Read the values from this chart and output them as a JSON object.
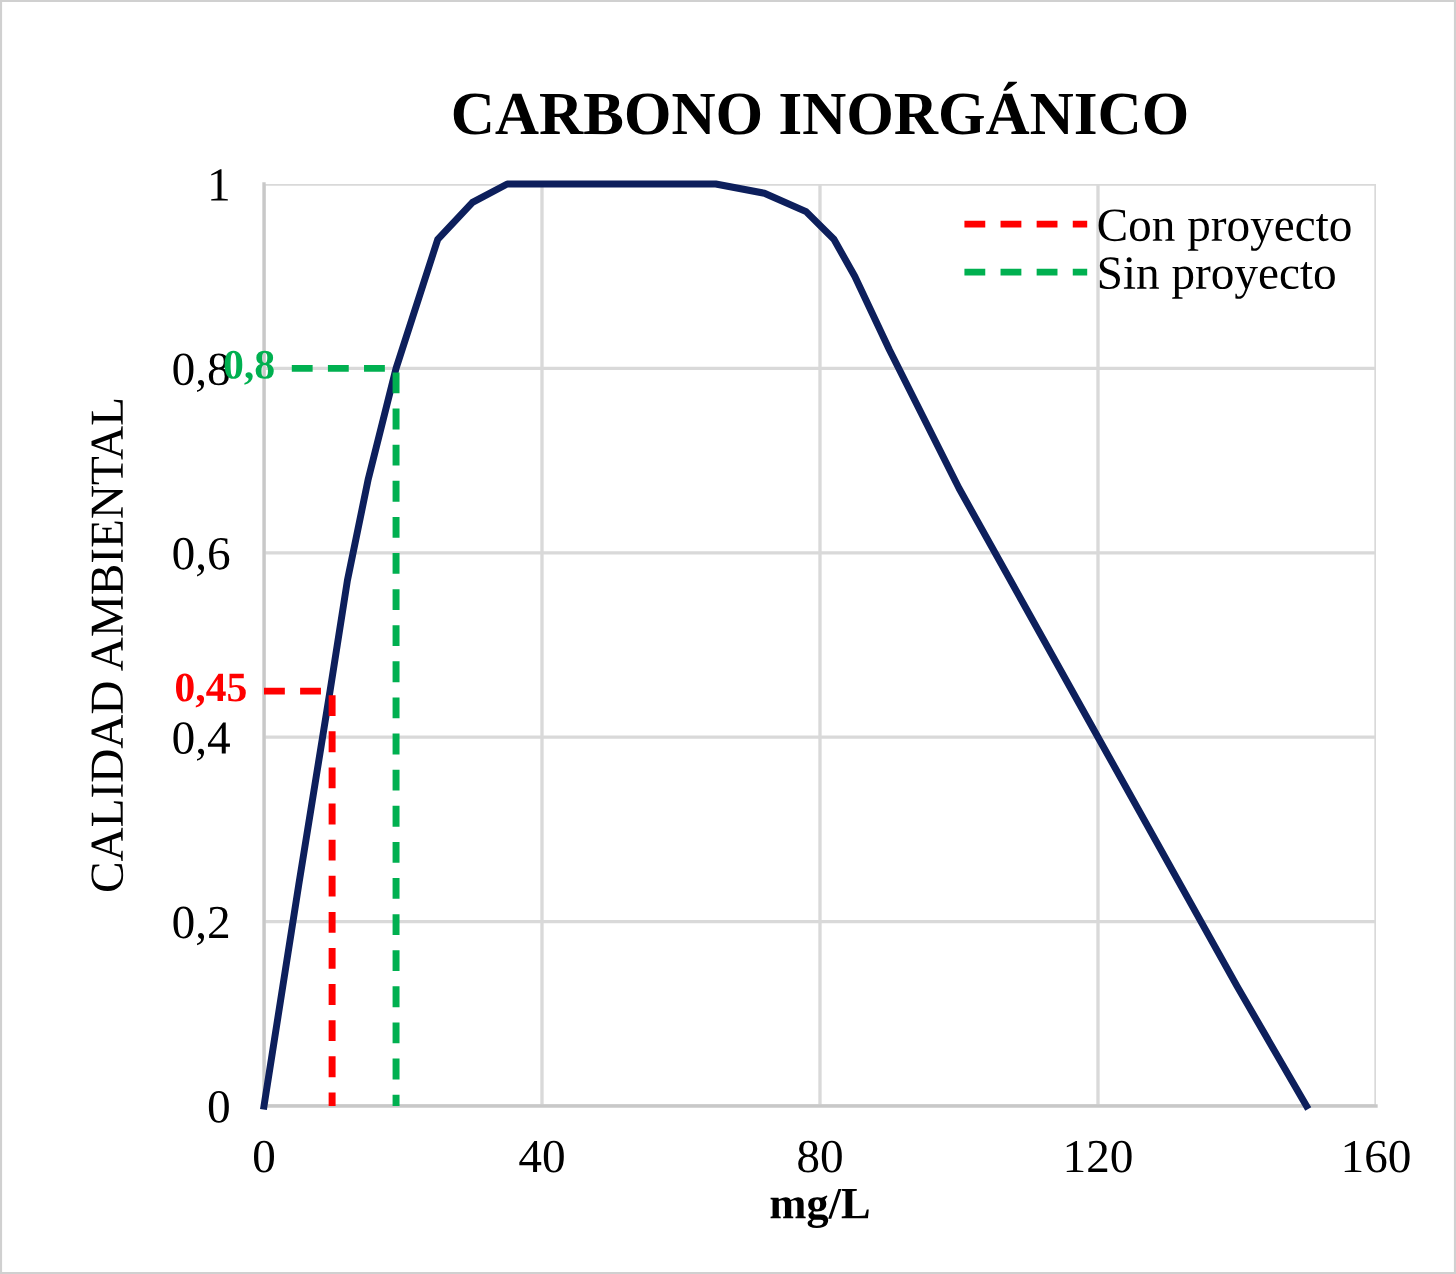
{
  "chart_data": {
    "type": "line",
    "title": "CARBONO INORGÁNICO",
    "xlabel": "mg/L",
    "ylabel": "CALIDAD AMBIENTAL",
    "xlim": [
      0,
      160
    ],
    "xticks": [
      0,
      40,
      80,
      120,
      160
    ],
    "ylim": [
      0,
      1
    ],
    "yticks": [
      {
        "value": 0,
        "label": "0"
      },
      {
        "value": 0.2,
        "label": "0,2"
      },
      {
        "value": 0.4,
        "label": "0,4"
      },
      {
        "value": 0.6,
        "label": "0,6"
      },
      {
        "value": 0.8,
        "label": "0,8"
      },
      {
        "value": 1,
        "label": "1"
      }
    ],
    "grid": true,
    "legend": "top right",
    "marker": "none",
    "series": [
      {
        "color": "#0d1f5c",
        "line_style": "solid",
        "x": [
          0,
          5,
          9.5,
          12,
          15,
          19,
          22,
          25,
          30,
          35,
          50,
          65,
          72,
          78,
          82,
          85,
          90,
          100,
          120,
          140,
          150
        ],
        "values": [
          0,
          0.24,
          0.45,
          0.57,
          0.68,
          0.8,
          0.87,
          0.94,
          0.98,
          1,
          1,
          1,
          0.99,
          0.97,
          0.94,
          0.9,
          0.82,
          0.67,
          0.4,
          0.13,
          0
        ]
      },
      {
        "name": "Con proyecto",
        "color": "#ff0000",
        "line_style": "dashed",
        "x": [
          0,
          9.8,
          9.8
        ],
        "values": [
          0.45,
          0.45,
          0
        ],
        "value_labels": [
          "0,45",
          null,
          null
        ]
      },
      {
        "name": "Sin proyecto",
        "color": "#00b050",
        "line_style": "dashed",
        "x": [
          4,
          19,
          19
        ],
        "values": [
          0.8,
          0.8,
          0
        ],
        "value_labels": [
          "0,8",
          null,
          null
        ]
      }
    ]
  }
}
